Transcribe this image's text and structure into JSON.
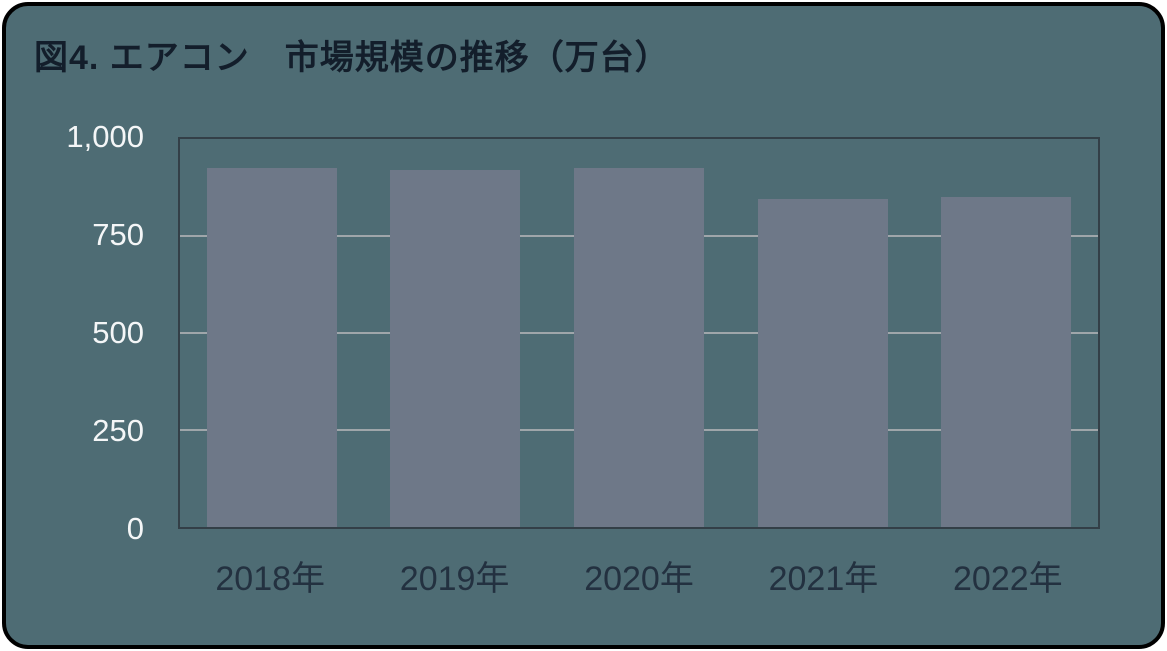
{
  "page": {
    "background_color": "#4e6c74",
    "frame_border_color": "#000000",
    "title": "図4. エアコン　市場規模の推移（万台）",
    "title_color": "#131e2b"
  },
  "chart_data": {
    "type": "bar",
    "title": "図4. エアコン　市場規模の推移（万台）",
    "categories": [
      "2018年",
      "2019年",
      "2020年",
      "2021年",
      "2022年"
    ],
    "values": [
      925,
      920,
      925,
      845,
      850
    ],
    "xlabel": "",
    "ylabel": "",
    "ylim": [
      0,
      1000
    ],
    "yticks": [
      0,
      250,
      500,
      750,
      1000
    ],
    "ytick_labels": [
      "0",
      "250",
      "500",
      "750",
      "1,000"
    ],
    "grid": true,
    "legend": "none",
    "bar_color": "#6e7888",
    "gridline_color": "#9fa6aa",
    "plot_border_color": "#333f47",
    "y_label_color": "#f4f6f7",
    "x_label_color": "#233140"
  }
}
